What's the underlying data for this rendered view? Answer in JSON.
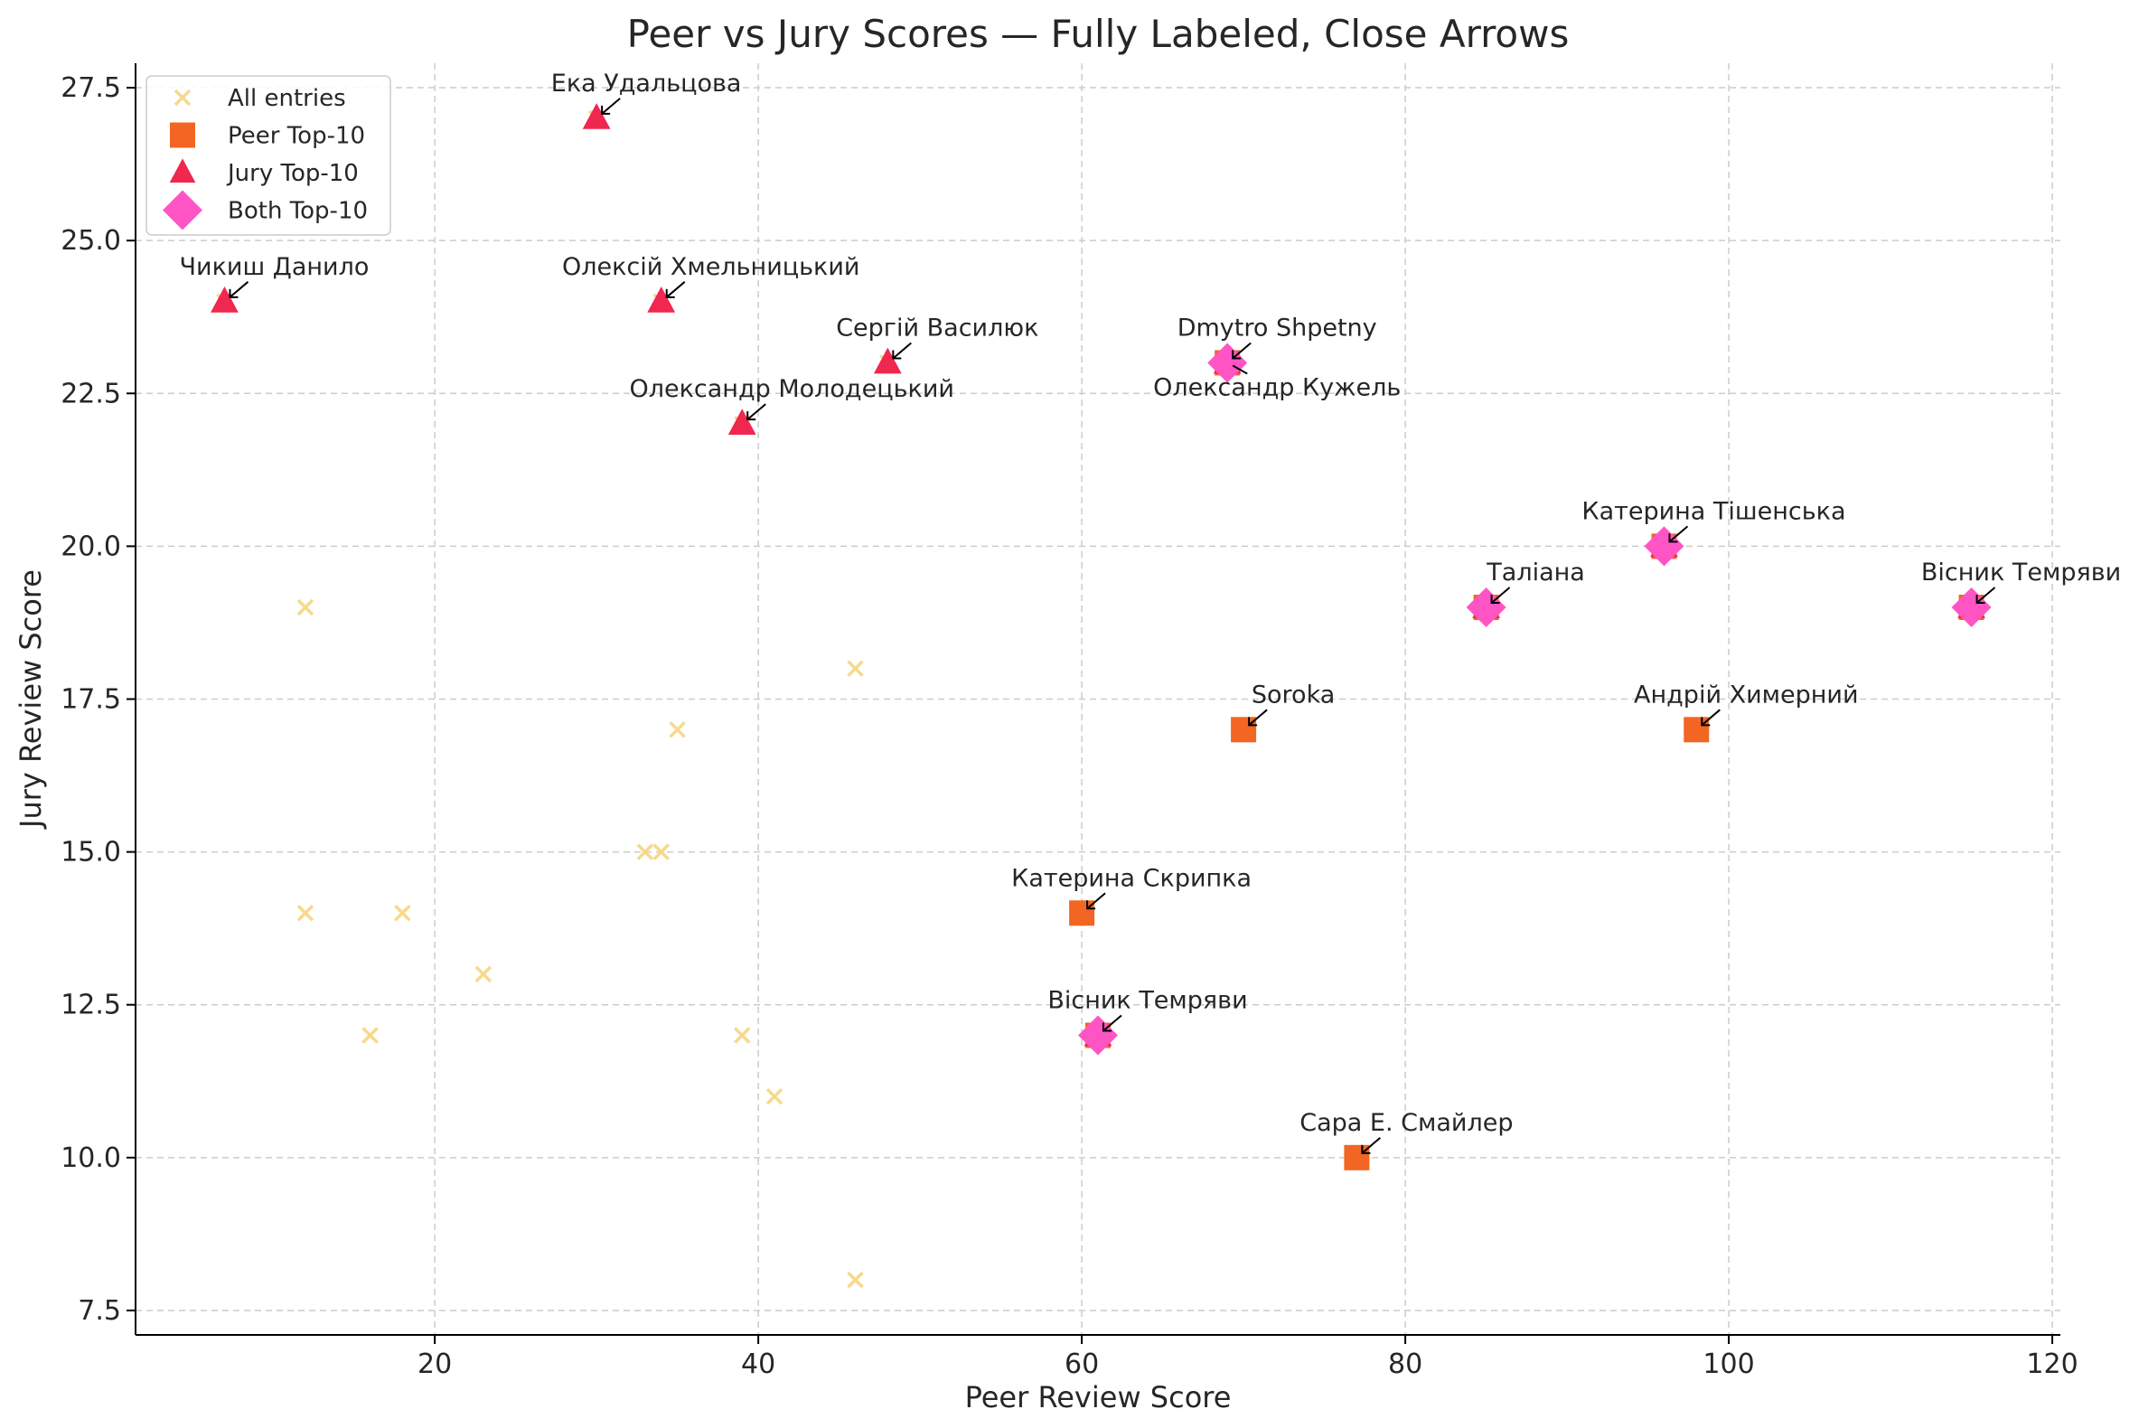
{
  "chart_data": {
    "type": "scatter",
    "title": "Peer vs Jury Scores — Fully Labeled, Close Arrows",
    "xlabel": "Peer Review Score",
    "ylabel": "Jury Review Score",
    "xlim": [
      1.5,
      120.5
    ],
    "ylim": [
      7.1,
      27.9
    ],
    "xticks": [
      20,
      40,
      60,
      80,
      100,
      120
    ],
    "xtick_labels": [
      "20",
      "40",
      "60",
      "80",
      "100",
      "120"
    ],
    "yticks": [
      7.5,
      10.0,
      12.5,
      15.0,
      17.5,
      20.0,
      22.5,
      25.0,
      27.5
    ],
    "ytick_labels": [
      "7.5",
      "10.0",
      "12.5",
      "15.0",
      "17.5",
      "20.0",
      "22.5",
      "25.0",
      "27.5"
    ],
    "grid": true,
    "legend_position": "top-left",
    "series": [
      {
        "name": "All entries",
        "marker": "x",
        "color": "#f7d98b",
        "points": [
          {
            "x": 12,
            "y": 19
          },
          {
            "x": 12,
            "y": 14
          },
          {
            "x": 16,
            "y": 12
          },
          {
            "x": 18,
            "y": 14
          },
          {
            "x": 23,
            "y": 13
          },
          {
            "x": 33,
            "y": 15
          },
          {
            "x": 34,
            "y": 15
          },
          {
            "x": 35,
            "y": 17
          },
          {
            "x": 39,
            "y": 12
          },
          {
            "x": 41,
            "y": 11
          },
          {
            "x": 46,
            "y": 18
          },
          {
            "x": 46,
            "y": 8
          },
          {
            "x": 7,
            "y": 24
          },
          {
            "x": 30,
            "y": 27
          },
          {
            "x": 34,
            "y": 24
          },
          {
            "x": 39,
            "y": 22
          },
          {
            "x": 48,
            "y": 23
          },
          {
            "x": 60,
            "y": 14
          },
          {
            "x": 61,
            "y": 12
          },
          {
            "x": 69,
            "y": 23
          },
          {
            "x": 70,
            "y": 17
          },
          {
            "x": 77,
            "y": 10
          },
          {
            "x": 85,
            "y": 19
          },
          {
            "x": 96,
            "y": 20
          },
          {
            "x": 98,
            "y": 17
          },
          {
            "x": 115,
            "y": 19
          }
        ]
      },
      {
        "name": "Peer Top-10",
        "marker": "square",
        "color": "#f26522",
        "points": [
          {
            "x": 60,
            "y": 14
          },
          {
            "x": 61,
            "y": 12
          },
          {
            "x": 69,
            "y": 23
          },
          {
            "x": 70,
            "y": 17
          },
          {
            "x": 77,
            "y": 10
          },
          {
            "x": 85,
            "y": 19
          },
          {
            "x": 96,
            "y": 20
          },
          {
            "x": 98,
            "y": 17
          },
          {
            "x": 115,
            "y": 19
          }
        ]
      },
      {
        "name": "Jury Top-10",
        "marker": "triangle",
        "color": "#f0274f",
        "points": [
          {
            "x": 7,
            "y": 24
          },
          {
            "x": 30,
            "y": 27
          },
          {
            "x": 34,
            "y": 24
          },
          {
            "x": 39,
            "y": 22
          },
          {
            "x": 48,
            "y": 23
          },
          {
            "x": 61,
            "y": 12
          },
          {
            "x": 69,
            "y": 23
          },
          {
            "x": 85,
            "y": 19
          },
          {
            "x": 96,
            "y": 20
          },
          {
            "x": 115,
            "y": 19
          }
        ]
      },
      {
        "name": "Both Top-10",
        "marker": "diamond",
        "color": "#ff55c4",
        "points": [
          {
            "x": 61,
            "y": 12
          },
          {
            "x": 69,
            "y": 23
          },
          {
            "x": 85,
            "y": 19
          },
          {
            "x": 96,
            "y": 20
          },
          {
            "x": 115,
            "y": 19
          }
        ]
      }
    ],
    "annotations": [
      {
        "text": "Ека Удальцова",
        "x": 30,
        "y": 27
      },
      {
        "text": "Чикиш Данило",
        "x": 7,
        "y": 24
      },
      {
        "text": "Олексій Хмельницький",
        "x": 34,
        "y": 24
      },
      {
        "text": "Сергій Василюк",
        "x": 48,
        "y": 23
      },
      {
        "text": "Олександр Молодецький",
        "x": 39,
        "y": 22
      },
      {
        "text": "Dmytro Shpetny",
        "x": 69,
        "y": 23
      },
      {
        "text": "Олександр Кужель",
        "x": 69,
        "y": 23,
        "below": true
      },
      {
        "text": "Катерина Тішенська",
        "x": 96,
        "y": 20
      },
      {
        "text": "Таліана",
        "x": 85,
        "y": 19
      },
      {
        "text": "Вісник Темряви",
        "x": 115,
        "y": 19
      },
      {
        "text": "Soroka",
        "x": 70,
        "y": 17
      },
      {
        "text": "Андрій Химерний",
        "x": 98,
        "y": 17
      },
      {
        "text": "Катерина Скрипка",
        "x": 60,
        "y": 14
      },
      {
        "text": "Вісник Темряви",
        "x": 61,
        "y": 12
      },
      {
        "text": "Сара Е. Смайлер",
        "x": 77,
        "y": 10
      }
    ]
  }
}
